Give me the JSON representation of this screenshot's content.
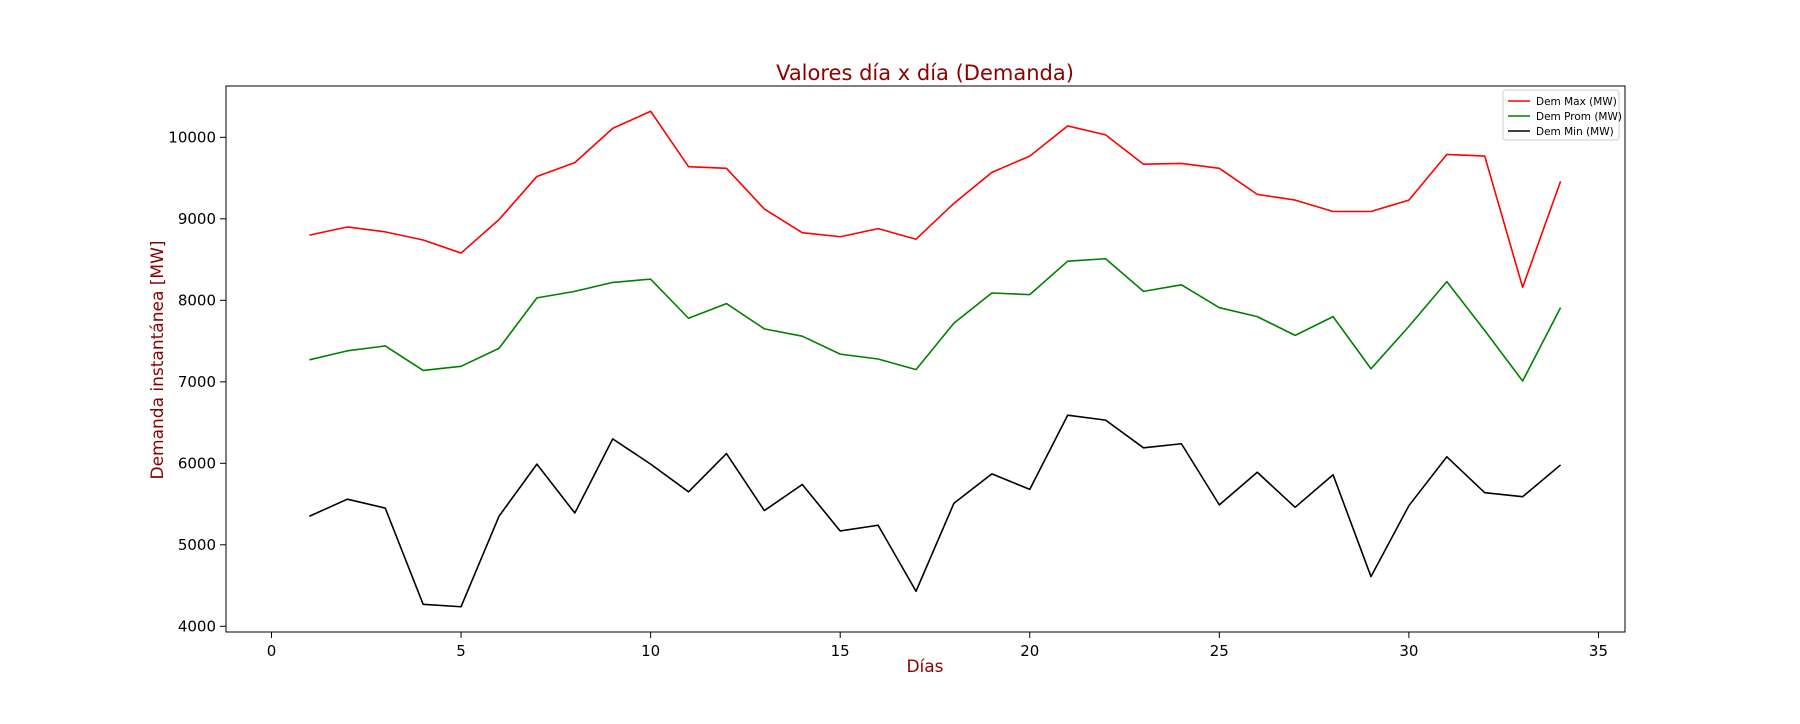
{
  "chart_data": {
    "type": "line",
    "title": "Valores día x día (Demanda)",
    "xlabel": "Días",
    "ylabel": "Demanda instantánea [MW]",
    "title_color": "#8b0000",
    "xlim": [
      -1.2,
      35.7
    ],
    "ylim": [
      3930,
      10630
    ],
    "xticks": [
      0,
      5,
      10,
      15,
      20,
      25,
      30,
      35
    ],
    "yticks": [
      4000,
      5000,
      6000,
      7000,
      8000,
      9000,
      10000
    ],
    "grid": false,
    "legend_position": "upper right",
    "x": [
      1,
      2,
      3,
      4,
      5,
      6,
      7,
      8,
      9,
      10,
      11,
      12,
      13,
      14,
      15,
      16,
      17,
      18,
      19,
      20,
      21,
      22,
      23,
      24,
      25,
      26,
      27,
      28,
      29,
      30,
      31,
      32,
      33,
      34
    ],
    "series": [
      {
        "name": "Dem Max (MW)",
        "color": "#ff0000",
        "values": [
          8800,
          8900,
          8840,
          8740,
          8580,
          8990,
          9520,
          9690,
          10110,
          10320,
          9640,
          9620,
          9120,
          8830,
          8780,
          8880,
          8750,
          9190,
          9570,
          9770,
          10140,
          10030,
          9670,
          9680,
          9620,
          9300,
          9230,
          9090,
          9090,
          9230,
          9790,
          9770,
          8160,
          9460
        ]
      },
      {
        "name": "Dem Prom (MW)",
        "color": "#008000",
        "values": [
          7270,
          7380,
          7440,
          7140,
          7190,
          7410,
          8030,
          8110,
          8220,
          8260,
          7780,
          7960,
          7650,
          7560,
          7340,
          7280,
          7150,
          7720,
          8090,
          8070,
          8480,
          8510,
          8110,
          8190,
          7910,
          7800,
          7570,
          7800,
          7160,
          7680,
          8230,
          7630,
          7010,
          7910
        ]
      },
      {
        "name": "Dem Min (MW)",
        "color": "#000000",
        "values": [
          5350,
          5560,
          5450,
          4270,
          4240,
          5350,
          5990,
          5390,
          6300,
          5990,
          5650,
          6120,
          5420,
          5740,
          5170,
          5240,
          4430,
          5510,
          5870,
          5680,
          6590,
          6530,
          6190,
          6240,
          5490,
          5890,
          5460,
          5860,
          4610,
          5480,
          6080,
          5640,
          5590,
          5980
        ]
      }
    ]
  }
}
